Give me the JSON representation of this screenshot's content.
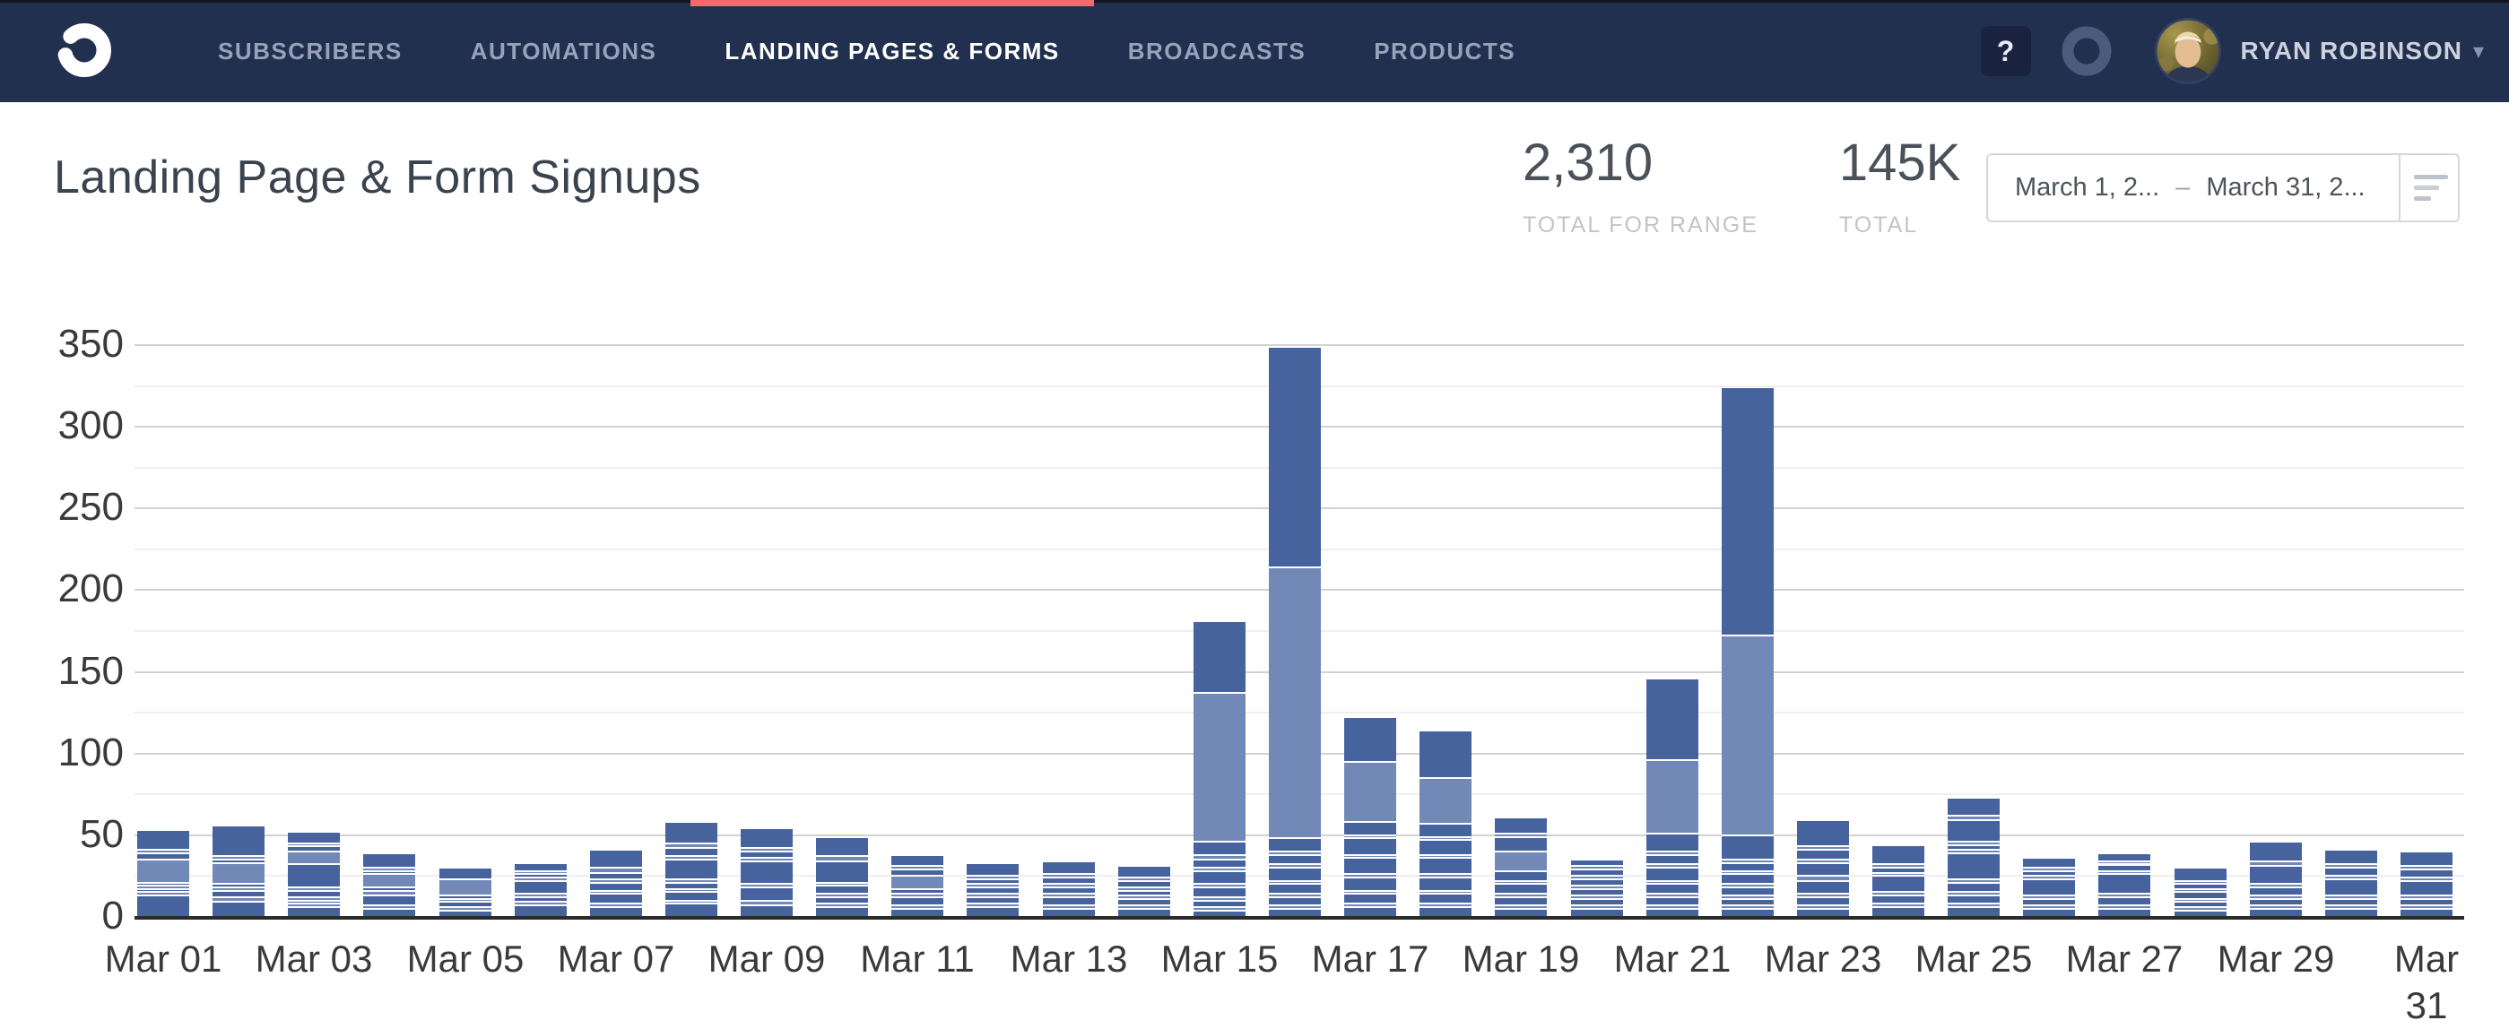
{
  "nav": {
    "items": [
      {
        "label": "SUBSCRIBERS",
        "active": false
      },
      {
        "label": "AUTOMATIONS",
        "active": false
      },
      {
        "label": "LANDING PAGES & FORMS",
        "active": true
      },
      {
        "label": "BROADCASTS",
        "active": false
      },
      {
        "label": "PRODUCTS",
        "active": false
      }
    ],
    "help_label": "?",
    "user": {
      "name": "RYAN ROBINSON",
      "caret": "▾"
    },
    "colors": {
      "bar": "#22304f",
      "active_indicator": "#f4696b"
    }
  },
  "header": {
    "title": "Landing Page & Form Signups",
    "stats": [
      {
        "value": "2,310",
        "label": "TOTAL FOR RANGE"
      },
      {
        "value": "145K",
        "label": "TOTAL"
      }
    ],
    "date_range": {
      "start": "March 1, 2...",
      "separator": "–",
      "end": "March 31, 2..."
    }
  },
  "icons": [
    "convertkit-swirl-logo",
    "help-icon",
    "ring-icon",
    "avatar",
    "chevron-down-icon",
    "filter-lines-icon"
  ],
  "chart_data": {
    "type": "bar",
    "stacked": true,
    "title": "Landing Page & Form Signups",
    "xlabel": "",
    "ylabel": "",
    "ylim": [
      0,
      350
    ],
    "ytick_step": 50,
    "minor_grid_step": 25,
    "grid": "horizontal",
    "legend": "none",
    "colors": {
      "d": "#47639e",
      "l": "#7289b8"
    },
    "x": [
      "Mar 01",
      "Mar 02",
      "Mar 03",
      "Mar 04",
      "Mar 05",
      "Mar 06",
      "Mar 07",
      "Mar 08",
      "Mar 09",
      "Mar 10",
      "Mar 11",
      "Mar 12",
      "Mar 13",
      "Mar 14",
      "Mar 15",
      "Mar 16",
      "Mar 17",
      "Mar 18",
      "Mar 19",
      "Mar 20",
      "Mar 21",
      "Mar 22",
      "Mar 23",
      "Mar 24",
      "Mar 25",
      "Mar 26",
      "Mar 27",
      "Mar 28",
      "Mar 29",
      "Mar 30",
      "Mar 31"
    ],
    "xtick_shown": [
      "Mar 01",
      "Mar 03",
      "Mar 05",
      "Mar 07",
      "Mar 09",
      "Mar 11",
      "Mar 13",
      "Mar 15",
      "Mar 17",
      "Mar 19",
      "Mar 21",
      "Mar 23",
      "Mar 25",
      "Mar 27",
      "Mar 29",
      "Mar 31"
    ],
    "totals": [
      52,
      55,
      51,
      38,
      29,
      32,
      40,
      57,
      53,
      48,
      37,
      32,
      33,
      30,
      180,
      348,
      121,
      113,
      60,
      34,
      145,
      323,
      58,
      43,
      72,
      35,
      38,
      29,
      45,
      40,
      39
    ],
    "total_for_range": 2310,
    "segments": [
      [
        [
          "d",
          12
        ],
        [
          "l",
          2
        ],
        [
          "d",
          2
        ],
        [
          "l",
          2
        ],
        [
          "d",
          2
        ],
        [
          "l",
          14
        ],
        [
          "d",
          4
        ],
        [
          "l",
          2
        ],
        [
          "d",
          12
        ]
      ],
      [
        [
          "d",
          8
        ],
        [
          "l",
          3
        ],
        [
          "d",
          4
        ],
        [
          "l",
          2
        ],
        [
          "d",
          2
        ],
        [
          "l",
          13
        ],
        [
          "d",
          2
        ],
        [
          "l",
          2
        ],
        [
          "d",
          19
        ]
      ],
      [
        [
          "d",
          5
        ],
        [
          "l",
          2
        ],
        [
          "d",
          2
        ],
        [
          "l",
          2
        ],
        [
          "d",
          4
        ],
        [
          "l",
          2
        ],
        [
          "d",
          14
        ],
        [
          "l",
          8
        ],
        [
          "d",
          3
        ],
        [
          "l",
          2
        ],
        [
          "d",
          7
        ]
      ],
      [
        [
          "d",
          4
        ],
        [
          "l",
          2
        ],
        [
          "d",
          6
        ],
        [
          "l",
          3
        ],
        [
          "d",
          2
        ],
        [
          "l",
          8
        ],
        [
          "d",
          2
        ],
        [
          "l",
          2
        ],
        [
          "d",
          9
        ]
      ],
      [
        [
          "d",
          3
        ],
        [
          "l",
          2
        ],
        [
          "d",
          3
        ],
        [
          "l",
          2
        ],
        [
          "d",
          2
        ],
        [
          "l",
          10
        ],
        [
          "d",
          7
        ]
      ],
      [
        [
          "d",
          6
        ],
        [
          "l",
          2
        ],
        [
          "d",
          3
        ],
        [
          "l",
          2
        ],
        [
          "d",
          8
        ],
        [
          "l",
          2
        ],
        [
          "d",
          2
        ],
        [
          "l",
          2
        ],
        [
          "d",
          5
        ]
      ],
      [
        [
          "d",
          5
        ],
        [
          "l",
          2
        ],
        [
          "d",
          6
        ],
        [
          "l",
          2
        ],
        [
          "d",
          5
        ],
        [
          "l",
          2
        ],
        [
          "d",
          4
        ],
        [
          "l",
          3
        ],
        [
          "d",
          11
        ]
      ],
      [
        [
          "d",
          7
        ],
        [
          "l",
          2
        ],
        [
          "d",
          5
        ],
        [
          "l",
          2
        ],
        [
          "d",
          4
        ],
        [
          "l",
          2
        ],
        [
          "d",
          12
        ],
        [
          "l",
          2
        ],
        [
          "d",
          5
        ],
        [
          "l",
          3
        ],
        [
          "d",
          13
        ]
      ],
      [
        [
          "d",
          6
        ],
        [
          "l",
          3
        ],
        [
          "d",
          8
        ],
        [
          "l",
          2
        ],
        [
          "d",
          14
        ],
        [
          "l",
          2
        ],
        [
          "d",
          4
        ],
        [
          "l",
          2
        ],
        [
          "d",
          12
        ]
      ],
      [
        [
          "d",
          5
        ],
        [
          "l",
          2
        ],
        [
          "d",
          4
        ],
        [
          "l",
          2
        ],
        [
          "d",
          5
        ],
        [
          "l",
          2
        ],
        [
          "d",
          13
        ],
        [
          "l",
          3
        ],
        [
          "d",
          12
        ]
      ],
      [
        [
          "d",
          4
        ],
        [
          "l",
          2
        ],
        [
          "d",
          5
        ],
        [
          "l",
          2
        ],
        [
          "d",
          3
        ],
        [
          "l",
          8
        ],
        [
          "d",
          4
        ],
        [
          "l",
          2
        ],
        [
          "d",
          7
        ]
      ],
      [
        [
          "d",
          5
        ],
        [
          "l",
          2
        ],
        [
          "d",
          4
        ],
        [
          "l",
          2
        ],
        [
          "d",
          4
        ],
        [
          "l",
          2
        ],
        [
          "d",
          3
        ],
        [
          "l",
          2
        ],
        [
          "d",
          8
        ]
      ],
      [
        [
          "d",
          4
        ],
        [
          "l",
          2
        ],
        [
          "d",
          5
        ],
        [
          "l",
          2
        ],
        [
          "d",
          4
        ],
        [
          "l",
          2
        ],
        [
          "d",
          4
        ],
        [
          "l",
          2
        ],
        [
          "d",
          8
        ]
      ],
      [
        [
          "d",
          4
        ],
        [
          "l",
          2
        ],
        [
          "d",
          4
        ],
        [
          "l",
          2
        ],
        [
          "d",
          3
        ],
        [
          "l",
          2
        ],
        [
          "d",
          4
        ],
        [
          "l",
          2
        ],
        [
          "d",
          7
        ]
      ],
      [
        [
          "d",
          3
        ],
        [
          "l",
          2
        ],
        [
          "d",
          4
        ],
        [
          "l",
          2
        ],
        [
          "d",
          6
        ],
        [
          "l",
          2
        ],
        [
          "d",
          8
        ],
        [
          "l",
          2
        ],
        [
          "d",
          5
        ],
        [
          "l",
          3
        ],
        [
          "d",
          8
        ],
        [
          "l",
          91
        ],
        [
          "d",
          44
        ]
      ],
      [
        [
          "d",
          4
        ],
        [
          "l",
          2
        ],
        [
          "d",
          5
        ],
        [
          "l",
          2
        ],
        [
          "d",
          6
        ],
        [
          "l",
          2
        ],
        [
          "d",
          8
        ],
        [
          "l",
          2
        ],
        [
          "d",
          6
        ],
        [
          "l",
          2
        ],
        [
          "d",
          8
        ],
        [
          "l",
          166
        ],
        [
          "d",
          135
        ]
      ],
      [
        [
          "d",
          5
        ],
        [
          "l",
          2
        ],
        [
          "d",
          6
        ],
        [
          "l",
          2
        ],
        [
          "d",
          8
        ],
        [
          "l",
          2
        ],
        [
          "d",
          10
        ],
        [
          "l",
          2
        ],
        [
          "d",
          10
        ],
        [
          "l",
          2
        ],
        [
          "d",
          8
        ],
        [
          "l",
          37
        ],
        [
          "d",
          27
        ]
      ],
      [
        [
          "d",
          5
        ],
        [
          "l",
          2
        ],
        [
          "d",
          6
        ],
        [
          "l",
          2
        ],
        [
          "d",
          8
        ],
        [
          "l",
          2
        ],
        [
          "d",
          10
        ],
        [
          "l",
          2
        ],
        [
          "d",
          9
        ],
        [
          "l",
          2
        ],
        [
          "d",
          8
        ],
        [
          "l",
          28
        ],
        [
          "d",
          29
        ]
      ],
      [
        [
          "d",
          4
        ],
        [
          "l",
          2
        ],
        [
          "d",
          5
        ],
        [
          "l",
          2
        ],
        [
          "d",
          6
        ],
        [
          "l",
          2
        ],
        [
          "d",
          6
        ],
        [
          "l",
          12
        ],
        [
          "d",
          9
        ],
        [
          "l",
          2
        ],
        [
          "d",
          10
        ]
      ],
      [
        [
          "d",
          4
        ],
        [
          "l",
          2
        ],
        [
          "d",
          4
        ],
        [
          "l",
          2
        ],
        [
          "d",
          4
        ],
        [
          "l",
          2
        ],
        [
          "d",
          4
        ],
        [
          "l",
          2
        ],
        [
          "d",
          4
        ],
        [
          "l",
          2
        ],
        [
          "d",
          4
        ]
      ],
      [
        [
          "d",
          4
        ],
        [
          "l",
          2
        ],
        [
          "d",
          5
        ],
        [
          "l",
          2
        ],
        [
          "d",
          6
        ],
        [
          "l",
          2
        ],
        [
          "d",
          8
        ],
        [
          "l",
          2
        ],
        [
          "d",
          6
        ],
        [
          "l",
          2
        ],
        [
          "d",
          11
        ],
        [
          "l",
          45
        ],
        [
          "d",
          50
        ]
      ],
      [
        [
          "d",
          4
        ],
        [
          "l",
          2
        ],
        [
          "d",
          4
        ],
        [
          "l",
          2
        ],
        [
          "d",
          5
        ],
        [
          "l",
          2
        ],
        [
          "d",
          6
        ],
        [
          "l",
          2
        ],
        [
          "d",
          5
        ],
        [
          "l",
          2
        ],
        [
          "d",
          15
        ],
        [
          "l",
          122
        ],
        [
          "d",
          152
        ]
      ],
      [
        [
          "d",
          4
        ],
        [
          "l",
          2
        ],
        [
          "d",
          5
        ],
        [
          "l",
          2
        ],
        [
          "d",
          8
        ],
        [
          "l",
          3
        ],
        [
          "d",
          8
        ],
        [
          "l",
          2
        ],
        [
          "d",
          6
        ],
        [
          "l",
          2
        ],
        [
          "d",
          16
        ]
      ],
      [
        [
          "d",
          5
        ],
        [
          "l",
          2
        ],
        [
          "d",
          5
        ],
        [
          "l",
          2
        ],
        [
          "d",
          10
        ],
        [
          "l",
          2
        ],
        [
          "d",
          3
        ],
        [
          "l",
          2
        ],
        [
          "d",
          12
        ]
      ],
      [
        [
          "d",
          5
        ],
        [
          "l",
          2
        ],
        [
          "d",
          5
        ],
        [
          "l",
          2
        ],
        [
          "d",
          6
        ],
        [
          "l",
          2
        ],
        [
          "d",
          16
        ],
        [
          "l",
          2
        ],
        [
          "d",
          3
        ],
        [
          "l",
          2
        ],
        [
          "d",
          13
        ],
        [
          "l",
          3
        ],
        [
          "d",
          11
        ]
      ],
      [
        [
          "d",
          4
        ],
        [
          "l",
          2
        ],
        [
          "d",
          4
        ],
        [
          "l",
          2
        ],
        [
          "d",
          10
        ],
        [
          "l",
          2
        ],
        [
          "d",
          3
        ],
        [
          "l",
          2
        ],
        [
          "d",
          6
        ]
      ],
      [
        [
          "d",
          4
        ],
        [
          "l",
          2
        ],
        [
          "d",
          5
        ],
        [
          "l",
          2
        ],
        [
          "d",
          12
        ],
        [
          "l",
          2
        ],
        [
          "d",
          4
        ],
        [
          "l",
          2
        ],
        [
          "d",
          5
        ]
      ],
      [
        [
          "d",
          3
        ],
        [
          "l",
          2
        ],
        [
          "d",
          3
        ],
        [
          "l",
          2
        ],
        [
          "d",
          4
        ],
        [
          "l",
          2
        ],
        [
          "d",
          3
        ],
        [
          "l",
          2
        ],
        [
          "d",
          8
        ]
      ],
      [
        [
          "d",
          4
        ],
        [
          "l",
          2
        ],
        [
          "d",
          4
        ],
        [
          "l",
          2
        ],
        [
          "d",
          5
        ],
        [
          "l",
          2
        ],
        [
          "d",
          11
        ],
        [
          "l",
          3
        ],
        [
          "d",
          12
        ]
      ],
      [
        [
          "d",
          4
        ],
        [
          "l",
          2
        ],
        [
          "d",
          4
        ],
        [
          "l",
          2
        ],
        [
          "d",
          10
        ],
        [
          "l",
          2
        ],
        [
          "d",
          5
        ],
        [
          "l",
          2
        ],
        [
          "d",
          9
        ]
      ],
      [
        [
          "d",
          4
        ],
        [
          "l",
          2
        ],
        [
          "d",
          4
        ],
        [
          "l",
          2
        ],
        [
          "d",
          9
        ],
        [
          "l",
          2
        ],
        [
          "d",
          5
        ],
        [
          "l",
          2
        ],
        [
          "d",
          9
        ]
      ]
    ]
  }
}
